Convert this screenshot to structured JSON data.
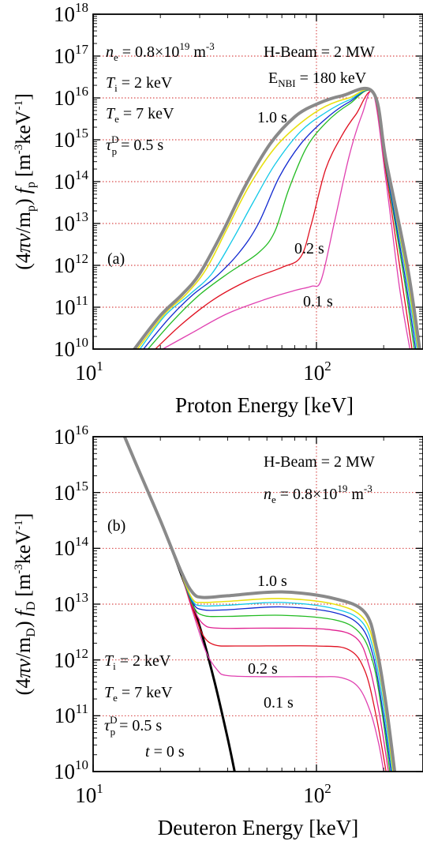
{
  "chart_data": [
    {
      "type": "line",
      "panel_label": "(a)",
      "xlabel": "Proton Energy [keV]",
      "ylabel": {
        "prefix": "(4",
        "pi": "π",
        "v": "v",
        "slash": "/m",
        "msub": "p",
        "rparen": ")",
        "f": "f",
        "fsub": "p",
        "units": "[m",
        "u1": "-3",
        "mid": "keV",
        "u2": "-1",
        "close": "]"
      },
      "x_scale": "log",
      "y_scale": "log",
      "xlim": [
        10,
        300
      ],
      "ylim": [
        10000000000.0,
        1e+18
      ],
      "x_ticks": [
        {
          "base": "10",
          "exp": "1",
          "value": 10
        },
        {
          "base": "10",
          "exp": "2",
          "value": 100
        }
      ],
      "y_ticks": [
        {
          "base": "10",
          "exp": "10",
          "value": 10
        },
        {
          "base": "10",
          "exp": "11",
          "value": 11
        },
        {
          "base": "10",
          "exp": "12",
          "value": 12
        },
        {
          "base": "10",
          "exp": "13",
          "value": 13
        },
        {
          "base": "10",
          "exp": "14",
          "value": 14
        },
        {
          "base": "10",
          "exp": "15",
          "value": 15
        },
        {
          "base": "10",
          "exp": "16",
          "value": 16
        },
        {
          "base": "10",
          "exp": "17",
          "value": 17
        },
        {
          "base": "10",
          "exp": "18",
          "value": 18
        }
      ],
      "grid": "dotted red, x=100 and y-decades",
      "annotations": {
        "ne": {
          "sym": "n",
          "sub": "e",
          "eq": " = 0.8×10",
          "exp": "19",
          "unit": " m",
          "uexp": "-3"
        },
        "ti": {
          "sym": "T",
          "sub": "i",
          "eq": " = 2 keV"
        },
        "te": {
          "sym": "T",
          "sub": "e",
          "eq": " = 7 keV"
        },
        "tau": {
          "sym": "τ",
          "sup": "D",
          "sub": "p",
          "eq": " = 0.5 s"
        },
        "beam": "H-Beam = 2 MW",
        "enbi": {
          "sym": "E",
          "sub": "NBI",
          "eq": " = 180 keV"
        },
        "t10": "1.0 s",
        "t02": "0.2 s",
        "t01": "0.1 s"
      },
      "series": [
        {
          "color": "#e040b0",
          "width": 1.3,
          "points": [
            [
              20.5,
              10
            ],
            [
              28,
              10.4
            ],
            [
              40,
              10.85
            ],
            [
              60,
              11.2
            ],
            [
              80,
              11.4
            ],
            [
              95,
              11.5
            ],
            [
              105,
              11.65
            ],
            [
              120,
              13
            ],
            [
              140,
              14.6
            ],
            [
              160,
              15.6
            ],
            [
              180,
              16.1
            ],
            [
              205,
              14
            ],
            [
              235,
              11.5
            ],
            [
              262,
              10
            ]
          ]
        },
        {
          "color": "#e01020",
          "width": 1.3,
          "points": [
            [
              19,
              10
            ],
            [
              25,
              10.6
            ],
            [
              35,
              11.2
            ],
            [
              50,
              11.65
            ],
            [
              70,
              11.95
            ],
            [
              85,
              12.2
            ],
            [
              95,
              13
            ],
            [
              110,
              14.3
            ],
            [
              130,
              15.1
            ],
            [
              150,
              15.6
            ],
            [
              180,
              16.1
            ],
            [
              205,
              14.2
            ],
            [
              240,
              11.7
            ],
            [
              268,
              10
            ]
          ]
        },
        {
          "color": "#22bb22",
          "width": 1.3,
          "points": [
            [
              17.6,
              10
            ],
            [
              23,
              10.7
            ],
            [
              30,
              11.3
            ],
            [
              40,
              11.8
            ],
            [
              55,
              12.3
            ],
            [
              65,
              12.8
            ],
            [
              75,
              13.8
            ],
            [
              90,
              14.8
            ],
            [
              110,
              15.4
            ],
            [
              140,
              15.85
            ],
            [
              180,
              16.1
            ],
            [
              205,
              14.3
            ],
            [
              245,
              11.8
            ],
            [
              274,
              10
            ]
          ]
        },
        {
          "color": "#1028d0",
          "width": 1.3,
          "points": [
            [
              16.8,
              10
            ],
            [
              22,
              10.75
            ],
            [
              28,
              11.3
            ],
            [
              35,
              11.7
            ],
            [
              45,
              12.3
            ],
            [
              55,
              13
            ],
            [
              68,
              14.1
            ],
            [
              85,
              14.9
            ],
            [
              110,
              15.5
            ],
            [
              140,
              15.9
            ],
            [
              180,
              16.1
            ],
            [
              205,
              14.35
            ],
            [
              248,
              11.8
            ],
            [
              278,
              10
            ]
          ]
        },
        {
          "color": "#10c8e8",
          "width": 1.3,
          "points": [
            [
              16.2,
              10
            ],
            [
              21,
              10.8
            ],
            [
              27,
              11.3
            ],
            [
              34,
              11.8
            ],
            [
              42,
              12.6
            ],
            [
              52,
              13.5
            ],
            [
              65,
              14.4
            ],
            [
              85,
              15.2
            ],
            [
              110,
              15.65
            ],
            [
              140,
              15.95
            ],
            [
              180,
              16.1
            ],
            [
              205,
              14.4
            ],
            [
              250,
              11.9
            ],
            [
              282,
              10
            ]
          ]
        },
        {
          "color": "#e8e010",
          "width": 1.6,
          "points": [
            [
              15.8,
              10
            ],
            [
              21,
              10.85
            ],
            [
              26,
              11.3
            ],
            [
              32,
              11.9
            ],
            [
              40,
              12.9
            ],
            [
              50,
              13.9
            ],
            [
              65,
              14.8
            ],
            [
              85,
              15.4
            ],
            [
              110,
              15.8
            ],
            [
              140,
              16
            ],
            [
              180,
              16.1
            ],
            [
              205,
              14.45
            ],
            [
              252,
              11.9
            ],
            [
              285,
              10
            ]
          ]
        },
        {
          "color": "#8a8a8a",
          "width": 4,
          "points": [
            [
              15.3,
              10
            ],
            [
              20,
              10.8
            ],
            [
              25,
              11.3
            ],
            [
              30,
              11.8
            ],
            [
              38,
              12.8
            ],
            [
              48,
              13.9
            ],
            [
              62,
              14.9
            ],
            [
              80,
              15.55
            ],
            [
              100,
              15.85
            ],
            [
              130,
              16.05
            ],
            [
              180,
              16.12
            ],
            [
              205,
              14.5
            ],
            [
              255,
              12
            ],
            [
              290,
              10
            ]
          ]
        }
      ]
    },
    {
      "type": "line",
      "panel_label": "(b)",
      "xlabel": "Deuteron Energy [keV]",
      "ylabel": {
        "prefix": "(4",
        "pi": "π",
        "v": "v",
        "slash": "/m",
        "msub": "D",
        "rparen": ")",
        "f": "f",
        "fsub": "D",
        "units": "[m",
        "u1": "-3",
        "mid": "keV",
        "u2": "-1",
        "close": "]"
      },
      "x_scale": "log",
      "y_scale": "log",
      "xlim": [
        10,
        300
      ],
      "ylim": [
        10000000000.0,
        1e+16
      ],
      "x_ticks": [
        {
          "base": "10",
          "exp": "1",
          "value": 10
        },
        {
          "base": "10",
          "exp": "2",
          "value": 100
        }
      ],
      "y_ticks": [
        {
          "base": "10",
          "exp": "10",
          "value": 10
        },
        {
          "base": "10",
          "exp": "11",
          "value": 11
        },
        {
          "base": "10",
          "exp": "12",
          "value": 12
        },
        {
          "base": "10",
          "exp": "13",
          "value": 13
        },
        {
          "base": "10",
          "exp": "14",
          "value": 14
        },
        {
          "base": "10",
          "exp": "15",
          "value": 15
        },
        {
          "base": "10",
          "exp": "16",
          "value": 16
        }
      ],
      "grid": "dotted red, x=100 and y-decades",
      "annotations": {
        "beam": "H-Beam = 2 MW",
        "ne": {
          "sym": "n",
          "sub": "e",
          "eq": " = 0.8×10",
          "exp": "19",
          "unit": " m",
          "uexp": "-3"
        },
        "ti": {
          "sym": "T",
          "sub": "i",
          "eq": " = 2 keV"
        },
        "te": {
          "sym": "T",
          "sub": "e",
          "eq": " = 7 keV"
        },
        "tau": {
          "sym": "τ",
          "sup": "D",
          "sub": "p",
          "eq": " = 0.5 s"
        },
        "t10": "1.0 s",
        "t02": "0.2 s",
        "t01": "0.1 s",
        "t0": {
          "sym": "t",
          "eq": " = 0 s"
        }
      },
      "series": [
        {
          "color": "#000000",
          "width": 3,
          "points": [
            [
              13.5,
              16.1
            ],
            [
              16,
              15.4
            ],
            [
              20,
              14.5
            ],
            [
              25,
              13.5
            ],
            [
              30,
              12.6
            ],
            [
              35,
              11.6
            ],
            [
              40,
              10.6
            ],
            [
              43,
              10
            ]
          ]
        },
        {
          "color": "#e040b0",
          "width": 1.3,
          "points": [
            [
              25,
              13.5
            ],
            [
              28,
              12.85
            ],
            [
              32,
              12.15
            ],
            [
              36,
              11.82
            ],
            [
              40,
              11.72
            ],
            [
              60,
              11.7
            ],
            [
              100,
              11.7
            ],
            [
              130,
              11.68
            ],
            [
              155,
              11.5
            ],
            [
              175,
              11.05
            ],
            [
              190,
              10.5
            ],
            [
              200,
              10
            ]
          ]
        },
        {
          "color": "#e01020",
          "width": 1.3,
          "points": [
            [
              25,
              13.5
            ],
            [
              28,
              12.9
            ],
            [
              31,
              12.45
            ],
            [
              35,
              12.27
            ],
            [
              45,
              12.25
            ],
            [
              100,
              12.25
            ],
            [
              140,
              12.18
            ],
            [
              165,
              11.8
            ],
            [
              185,
              11
            ],
            [
              205,
              10
            ]
          ]
        },
        {
          "color": "#e02090",
          "width": 1.3,
          "points": [
            [
              25,
              13.5
            ],
            [
              28,
              12.95
            ],
            [
              31,
              12.65
            ],
            [
              36,
              12.57
            ],
            [
              60,
              12.57
            ],
            [
              110,
              12.55
            ],
            [
              150,
              12.4
            ],
            [
              172,
              11.9
            ],
            [
              192,
              11
            ],
            [
              210,
              10
            ]
          ]
        },
        {
          "color": "#22bb22",
          "width": 1.3,
          "points": [
            [
              25,
              13.5
            ],
            [
              28,
              12.98
            ],
            [
              31,
              12.8
            ],
            [
              40,
              12.78
            ],
            [
              70,
              12.8
            ],
            [
              120,
              12.72
            ],
            [
              155,
              12.5
            ],
            [
              178,
              12
            ],
            [
              196,
              11.1
            ],
            [
              213,
              10
            ]
          ]
        },
        {
          "color": "#1028d0",
          "width": 1.3,
          "points": [
            [
              25,
              13.5
            ],
            [
              28,
              13.02
            ],
            [
              31,
              12.9
            ],
            [
              40,
              12.9
            ],
            [
              70,
              12.95
            ],
            [
              120,
              12.85
            ],
            [
              158,
              12.6
            ],
            [
              180,
              12.05
            ],
            [
              198,
              11.1
            ],
            [
              216,
              10
            ]
          ]
        },
        {
          "color": "#10c8e8",
          "width": 1.3,
          "points": [
            [
              25,
              13.5
            ],
            [
              28,
              13.05
            ],
            [
              31,
              12.97
            ],
            [
              40,
              12.98
            ],
            [
              70,
              13.03
            ],
            [
              120,
              12.92
            ],
            [
              160,
              12.68
            ],
            [
              182,
              12.1
            ],
            [
              200,
              11.15
            ],
            [
              218,
              10
            ]
          ]
        },
        {
          "color": "#e8e010",
          "width": 1.6,
          "points": [
            [
              25,
              13.5
            ],
            [
              28,
              13.08
            ],
            [
              31,
              13.03
            ],
            [
              40,
              13.05
            ],
            [
              70,
              13.1
            ],
            [
              120,
              13
            ],
            [
              162,
              12.75
            ],
            [
              184,
              12.15
            ],
            [
              202,
              11.2
            ],
            [
              220,
              10
            ]
          ]
        },
        {
          "color": "#8a8a8a",
          "width": 4,
          "points": [
            [
              13.5,
              16.1
            ],
            [
              16,
              15.4
            ],
            [
              20,
              14.5
            ],
            [
              25,
              13.55
            ],
            [
              28,
              13.2
            ],
            [
              31,
              13.12
            ],
            [
              40,
              13.15
            ],
            [
              70,
              13.22
            ],
            [
              120,
              13.1
            ],
            [
              165,
              12.85
            ],
            [
              186,
              12.2
            ],
            [
              205,
              11.2
            ],
            [
              224,
              10
            ]
          ]
        }
      ]
    }
  ]
}
